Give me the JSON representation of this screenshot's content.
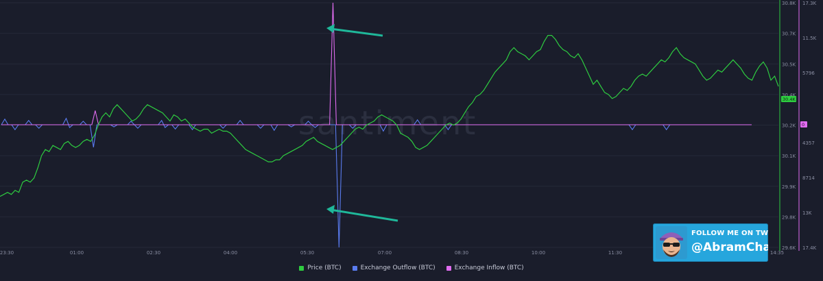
{
  "chart_data": {
    "type": "line",
    "watermark": "santiment",
    "x_ticks": [
      "23:30",
      "01:00",
      "02:30",
      "04:00",
      "05:30",
      "07:00",
      "08:30",
      "10:00",
      "11:30",
      "14:35"
    ],
    "y_left": {
      "label": "Price (BTC)",
      "ticks": [
        "30.8K",
        "30.7K",
        "30.5K",
        "30.4K",
        "30.2K",
        "30.1K",
        "29.9K",
        "29.8K",
        "29.6K"
      ],
      "ylim": [
        29.6,
        30.8
      ],
      "current_badge": "30.4K",
      "color": "#2ecc40"
    },
    "y_right": {
      "ticks": [
        "17.3K",
        "11.5K",
        "5796",
        "",
        "4357",
        "8714",
        "13K",
        "17.4K"
      ],
      "current_badge": "0",
      "color": "#e06cf0"
    },
    "series": [
      {
        "name": "Price (BTC)",
        "color": "#2ecc40",
        "values": [
          29.85,
          29.86,
          29.87,
          29.86,
          29.88,
          29.87,
          29.92,
          29.93,
          29.92,
          29.94,
          29.99,
          30.05,
          30.08,
          30.07,
          30.1,
          30.09,
          30.08,
          30.11,
          30.12,
          30.1,
          30.09,
          30.1,
          30.12,
          30.13,
          30.12,
          30.15,
          30.2,
          30.24,
          30.26,
          30.24,
          30.28,
          30.3,
          30.28,
          30.26,
          30.24,
          30.22,
          30.23,
          30.25,
          30.28,
          30.3,
          30.29,
          30.28,
          30.27,
          30.26,
          30.24,
          30.22,
          30.25,
          30.24,
          30.22,
          30.23,
          30.21,
          30.19,
          30.18,
          30.17,
          30.18,
          30.18,
          30.16,
          30.17,
          30.18,
          30.17,
          30.17,
          30.16,
          30.14,
          30.12,
          30.1,
          30.08,
          30.07,
          30.06,
          30.05,
          30.04,
          30.03,
          30.02,
          30.02,
          30.03,
          30.03,
          30.05,
          30.06,
          30.07,
          30.08,
          30.09,
          30.1,
          30.12,
          30.13,
          30.14,
          30.12,
          30.11,
          30.1,
          30.09,
          30.08,
          30.09,
          30.1,
          30.12,
          30.14,
          30.16,
          30.18,
          30.19,
          30.18,
          30.2,
          30.21,
          30.22,
          30.24,
          30.25,
          30.24,
          30.23,
          30.22,
          30.2,
          30.16,
          30.15,
          30.14,
          30.12,
          30.09,
          30.08,
          30.09,
          30.1,
          30.12,
          30.14,
          30.16,
          30.18,
          30.2,
          30.21,
          30.2,
          30.21,
          30.23,
          30.26,
          30.29,
          30.31,
          30.34,
          30.35,
          30.37,
          30.4,
          30.43,
          30.46,
          30.48,
          30.5,
          30.52,
          30.56,
          30.58,
          30.56,
          30.55,
          30.54,
          30.52,
          30.54,
          30.56,
          30.57,
          30.61,
          30.64,
          30.64,
          30.62,
          30.59,
          30.57,
          30.56,
          30.54,
          30.53,
          30.55,
          30.52,
          30.48,
          30.44,
          30.4,
          30.42,
          30.39,
          30.36,
          30.35,
          30.33,
          30.34,
          30.36,
          30.38,
          30.37,
          30.39,
          30.42,
          30.44,
          30.45,
          30.44,
          30.46,
          30.48,
          30.5,
          30.52,
          30.51,
          30.53,
          30.56,
          30.58,
          30.55,
          30.53,
          30.52,
          30.51,
          30.5,
          30.47,
          30.44,
          30.42,
          30.43,
          30.45,
          30.47,
          30.46,
          30.48,
          30.5,
          30.52,
          30.5,
          30.48,
          30.45,
          30.43,
          30.42,
          30.46,
          30.49,
          30.51,
          30.48,
          30.42,
          30.44,
          30.39
        ]
      },
      {
        "name": "Exchange Outflow (BTC)",
        "color": "#5a7cf0",
        "values": [
          0,
          800,
          0,
          0,
          -700,
          0,
          0,
          0,
          600,
          0,
          0,
          -500,
          0,
          0,
          0,
          0,
          0,
          0,
          0,
          900,
          -400,
          0,
          0,
          0,
          500,
          0,
          0,
          -3200,
          0,
          0,
          0,
          0,
          0,
          -300,
          0,
          0,
          0,
          0,
          500,
          0,
          -500,
          0,
          0,
          0,
          0,
          0,
          0,
          600,
          -400,
          0,
          0,
          -600,
          0,
          0,
          0,
          0,
          -700,
          0,
          0,
          0,
          0,
          0,
          0,
          0,
          0,
          -500,
          0,
          0,
          0,
          0,
          600,
          0,
          0,
          0,
          0,
          0,
          -500,
          0,
          0,
          0,
          -800,
          0,
          0,
          0,
          0,
          -300,
          0,
          0,
          0,
          0,
          500,
          0,
          -400,
          0,
          0,
          0,
          0,
          0,
          0,
          -17400,
          0,
          0,
          0,
          -500,
          0,
          0,
          0,
          0,
          0,
          0,
          0,
          0,
          -900,
          0,
          0,
          0,
          0,
          0,
          0,
          0,
          0,
          0,
          700,
          0,
          0,
          0,
          0,
          0,
          0,
          0,
          0,
          -700,
          0,
          0,
          0,
          0,
          0,
          0,
          0,
          0,
          0,
          0,
          0,
          0,
          0,
          0,
          0,
          0,
          0,
          0,
          0,
          0,
          0,
          0,
          0,
          0,
          0,
          0,
          0,
          0,
          0,
          0,
          0,
          0,
          0,
          0,
          0,
          0,
          0,
          0,
          0,
          0,
          0,
          0,
          0,
          0,
          0,
          0,
          0,
          0,
          0,
          0,
          0,
          0,
          0,
          -700,
          0,
          0,
          0,
          0,
          0,
          0,
          0,
          0,
          0,
          -700,
          0,
          0,
          0,
          0,
          0,
          0,
          0,
          0,
          0,
          0,
          0,
          0,
          0,
          0,
          0,
          0,
          0,
          0,
          0,
          0,
          0,
          0,
          0,
          0,
          0
        ]
      },
      {
        "name": "Exchange Inflow (BTC)",
        "color": "#e06cf0",
        "values": [
          0,
          0,
          0,
          0,
          0,
          0,
          0,
          0,
          0,
          0,
          0,
          0,
          0,
          0,
          0,
          0,
          0,
          0,
          0,
          0,
          0,
          0,
          0,
          0,
          0,
          0,
          0,
          0,
          2000,
          0,
          0,
          0,
          0,
          0,
          0,
          0,
          0,
          0,
          0,
          0,
          0,
          0,
          0,
          0,
          0,
          0,
          0,
          0,
          0,
          0,
          0,
          0,
          0,
          0,
          0,
          0,
          0,
          0,
          0,
          0,
          0,
          0,
          0,
          0,
          0,
          0,
          0,
          0,
          0,
          0,
          0,
          0,
          0,
          0,
          0,
          0,
          0,
          0,
          0,
          0,
          0,
          0,
          0,
          0,
          0,
          0,
          0,
          0,
          0,
          0,
          0,
          0,
          0,
          0,
          0,
          0,
          0,
          0,
          0,
          17300,
          0,
          0,
          0,
          0,
          0,
          0,
          0,
          0,
          0,
          0,
          0,
          0,
          0,
          0,
          0,
          0,
          0,
          0,
          0,
          0,
          0,
          0,
          0,
          0,
          0,
          0,
          0,
          0,
          0,
          0,
          0,
          0,
          0,
          0,
          0,
          0,
          0,
          0,
          0,
          0,
          0,
          0,
          0,
          0,
          0,
          0,
          0,
          0,
          0,
          0,
          0,
          0,
          0,
          0,
          0,
          0,
          0,
          0,
          0,
          0,
          0,
          0,
          0,
          0,
          0,
          0,
          0,
          0,
          0,
          0,
          0,
          0,
          0,
          0,
          0,
          0,
          0,
          0,
          0,
          0,
          0,
          0,
          0,
          0,
          0,
          0,
          0,
          0,
          0,
          0,
          0,
          0,
          0,
          0,
          0,
          0,
          0,
          0,
          0,
          0,
          0,
          0,
          0,
          0,
          0,
          0,
          0,
          0,
          0,
          0,
          0,
          0,
          0,
          0,
          0,
          0,
          0,
          0,
          0,
          0,
          0,
          0,
          0,
          0,
          0
        ]
      }
    ],
    "legend_position": "bottom-center",
    "grid": true
  },
  "promo": {
    "line1": "FOLLOW ME ON TWITTER",
    "line2": "@AbramChart"
  }
}
